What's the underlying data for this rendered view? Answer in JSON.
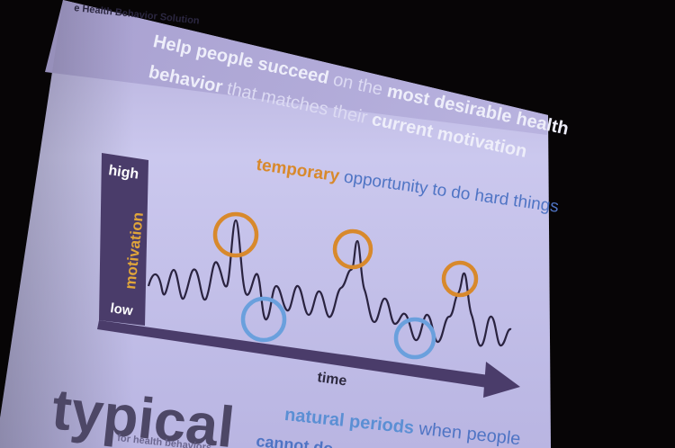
{
  "slide": {
    "header_label": "e Health Behavior Solution",
    "headline": {
      "line1": {
        "bold1": "Help people succeed",
        "normal1": " on the ",
        "bold2": "most desirable health"
      },
      "line2": {
        "bold1": "behavior",
        "normal1": " that matches their ",
        "bold2": "current motivation"
      }
    },
    "axis": {
      "y_label": "motivation",
      "y_high": "high",
      "y_low": "low",
      "x_label": "time"
    },
    "annotation": {
      "temporary_word": "temporary",
      "temporary_rest": " opportunity to do hard things"
    },
    "footer": {
      "typical_word": "typical",
      "typical_sub": "for health behaviors",
      "natural_bold": "natural periods",
      "natural_rest": " when people",
      "natural_line2": "cannot do"
    }
  },
  "colors": {
    "background": "#070506",
    "slide_top": "#a49ccd",
    "slide_body": "#c9c7ec",
    "orange": "#d8892c",
    "blue": "#6aa0dd",
    "axis_purple": "#4a3c6a",
    "text_dark": "#2e2a40"
  }
}
